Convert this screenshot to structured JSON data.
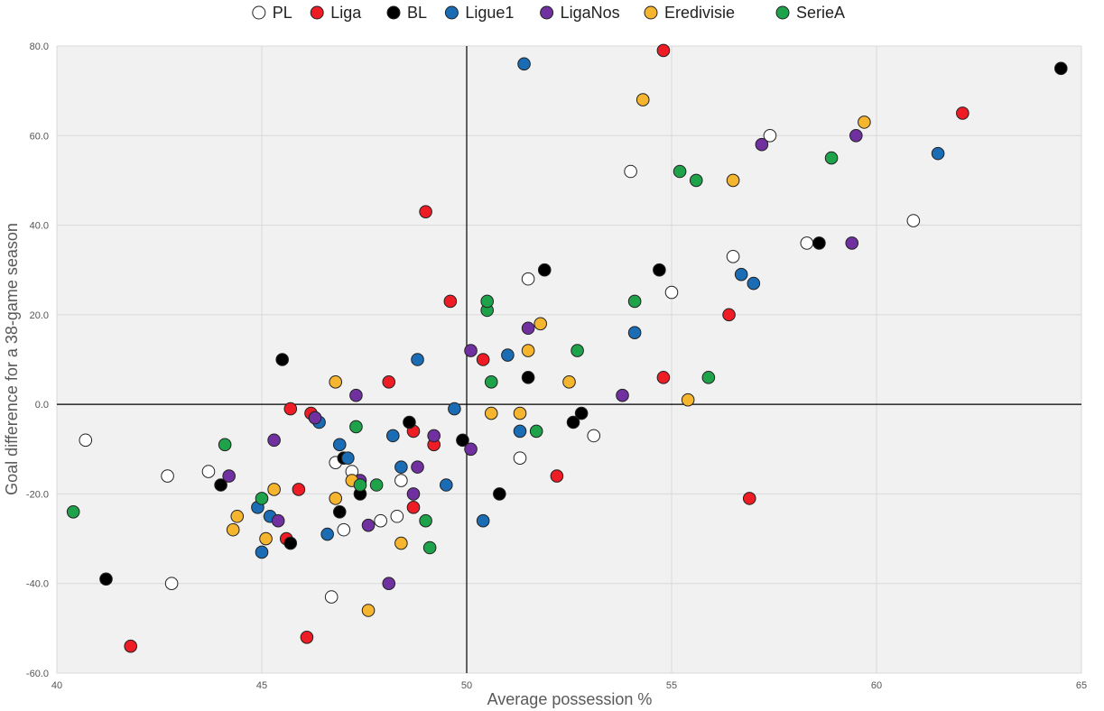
{
  "chart_data": {
    "type": "scatter",
    "title": "",
    "xlabel": "Average possession %",
    "ylabel": "Goal difference for a 38-game season",
    "xlim": [
      40,
      65
    ],
    "ylim": [
      -60,
      80
    ],
    "xticks": [
      40,
      45,
      50,
      55,
      60,
      65
    ],
    "yticks": [
      -60,
      -40,
      -20,
      0,
      20,
      40,
      60,
      80
    ],
    "xtick_labels": [
      "40",
      "45",
      "50",
      "55",
      "60",
      "65"
    ],
    "ytick_labels": [
      "-60.0",
      "-40.0",
      "-20.0",
      "0.0",
      "20.0",
      "40.0",
      "60.0",
      "80.0"
    ],
    "grid": true,
    "legend_position": "top",
    "reference_lines": {
      "x": 50,
      "y": 0
    },
    "series": [
      {
        "name": "PL",
        "color": "#ffffff",
        "points": [
          [
            40.7,
            -8
          ],
          [
            42.7,
            -16
          ],
          [
            43.7,
            -15
          ],
          [
            42.8,
            -40
          ],
          [
            46.7,
            -43
          ],
          [
            46.8,
            -13
          ],
          [
            47.0,
            -28
          ],
          [
            47.2,
            -15
          ],
          [
            47.9,
            -26
          ],
          [
            48.3,
            -25
          ],
          [
            48.4,
            -17
          ],
          [
            51.3,
            -12
          ],
          [
            53.1,
            -7
          ],
          [
            51.5,
            28
          ],
          [
            54.0,
            52
          ],
          [
            55.0,
            25
          ],
          [
            56.5,
            33
          ],
          [
            57.4,
            60
          ],
          [
            58.3,
            36
          ],
          [
            60.9,
            41
          ]
        ]
      },
      {
        "name": "Liga",
        "color": "#ee1c25",
        "points": [
          [
            41.8,
            -54
          ],
          [
            45.6,
            -30
          ],
          [
            45.9,
            -19
          ],
          [
            46.1,
            -52
          ],
          [
            45.7,
            -1
          ],
          [
            46.2,
            -2
          ],
          [
            48.1,
            5
          ],
          [
            48.7,
            -6
          ],
          [
            48.7,
            -23
          ],
          [
            49.0,
            43
          ],
          [
            49.2,
            -9
          ],
          [
            49.6,
            23
          ],
          [
            50.4,
            10
          ],
          [
            52.2,
            -16
          ],
          [
            54.8,
            79
          ],
          [
            54.8,
            6
          ],
          [
            56.4,
            20
          ],
          [
            56.9,
            -21
          ],
          [
            62.1,
            65
          ]
        ]
      },
      {
        "name": "BL",
        "color": "#000000",
        "points": [
          [
            41.2,
            -39
          ],
          [
            44.0,
            -18
          ],
          [
            45.5,
            10
          ],
          [
            45.7,
            -31
          ],
          [
            46.3,
            -3
          ],
          [
            46.9,
            -24
          ],
          [
            47.0,
            -12
          ],
          [
            47.4,
            -20
          ],
          [
            48.6,
            -4
          ],
          [
            49.9,
            -8
          ],
          [
            50.8,
            -20
          ],
          [
            51.5,
            6
          ],
          [
            51.9,
            30
          ],
          [
            52.6,
            -4
          ],
          [
            52.8,
            -2
          ],
          [
            54.7,
            30
          ],
          [
            58.6,
            36
          ],
          [
            64.5,
            75
          ]
        ]
      },
      {
        "name": "Ligue1",
        "color": "#1a6cb5",
        "points": [
          [
            44.9,
            -23
          ],
          [
            45.0,
            -33
          ],
          [
            45.2,
            -25
          ],
          [
            46.4,
            -4
          ],
          [
            46.6,
            -29
          ],
          [
            46.9,
            -9
          ],
          [
            47.1,
            -12
          ],
          [
            48.2,
            -7
          ],
          [
            48.4,
            -14
          ],
          [
            48.8,
            10
          ],
          [
            49.5,
            -18
          ],
          [
            49.7,
            -1
          ],
          [
            50.4,
            -26
          ],
          [
            51.0,
            11
          ],
          [
            51.3,
            -6
          ],
          [
            51.4,
            76
          ],
          [
            54.1,
            16
          ],
          [
            56.7,
            29
          ],
          [
            57.0,
            27
          ],
          [
            61.5,
            56
          ]
        ]
      },
      {
        "name": "LigaNos",
        "color": "#7030a0",
        "points": [
          [
            44.2,
            -16
          ],
          [
            45.3,
            -8
          ],
          [
            45.4,
            -26
          ],
          [
            46.3,
            -3
          ],
          [
            47.3,
            2
          ],
          [
            47.4,
            -17
          ],
          [
            47.6,
            -27
          ],
          [
            48.1,
            -40
          ],
          [
            48.7,
            -20
          ],
          [
            48.8,
            -14
          ],
          [
            49.2,
            -7
          ],
          [
            50.1,
            12
          ],
          [
            50.1,
            -10
          ],
          [
            51.5,
            17
          ],
          [
            53.8,
            2
          ],
          [
            57.2,
            58
          ],
          [
            59.4,
            36
          ],
          [
            59.5,
            60
          ]
        ]
      },
      {
        "name": "Eredivisie",
        "color": "#f6b52e",
        "points": [
          [
            44.3,
            -28
          ],
          [
            44.4,
            -25
          ],
          [
            45.1,
            -30
          ],
          [
            45.3,
            -19
          ],
          [
            46.8,
            -21
          ],
          [
            46.8,
            5
          ],
          [
            47.2,
            -17
          ],
          [
            47.6,
            -46
          ],
          [
            48.4,
            -31
          ],
          [
            50.6,
            -2
          ],
          [
            51.3,
            -2
          ],
          [
            51.5,
            12
          ],
          [
            51.8,
            18
          ],
          [
            52.5,
            5
          ],
          [
            54.3,
            68
          ],
          [
            55.4,
            1
          ],
          [
            56.5,
            50
          ],
          [
            59.7,
            63
          ]
        ]
      },
      {
        "name": "SerieA",
        "color": "#1ea34b",
        "points": [
          [
            40.4,
            -24
          ],
          [
            44.1,
            -9
          ],
          [
            45.0,
            -21
          ],
          [
            47.3,
            -5
          ],
          [
            47.4,
            -18
          ],
          [
            47.8,
            -18
          ],
          [
            49.0,
            -26
          ],
          [
            49.1,
            -32
          ],
          [
            50.5,
            21
          ],
          [
            50.5,
            23
          ],
          [
            50.6,
            5
          ],
          [
            51.7,
            -6
          ],
          [
            52.7,
            12
          ],
          [
            54.1,
            23
          ],
          [
            55.2,
            52
          ],
          [
            55.6,
            50
          ],
          [
            55.9,
            6
          ],
          [
            58.9,
            55
          ]
        ]
      }
    ]
  }
}
